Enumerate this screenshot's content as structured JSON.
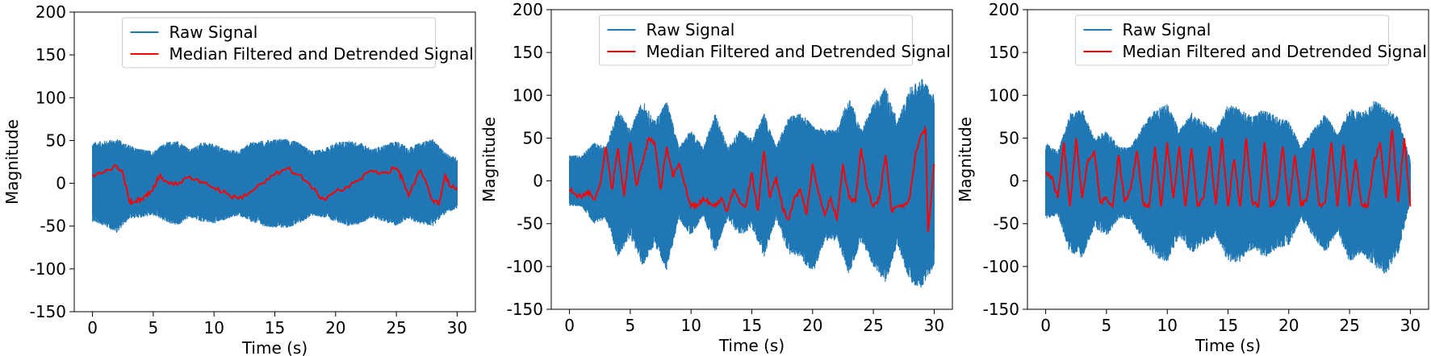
{
  "colors": {
    "raw": "#1f77b4",
    "filtered": "#ff0000",
    "axis": "#000000",
    "legend_border": "#cccccc"
  },
  "chart_data": [
    {
      "type": "line",
      "xlabel": "Time (s)",
      "ylabel": "Magnitude",
      "xlim": [
        -1.5,
        31.5
      ],
      "ylim": [
        -150,
        200
      ],
      "xticks": [
        0,
        5,
        10,
        15,
        20,
        25,
        30
      ],
      "yticks": [
        -150,
        -100,
        -50,
        0,
        50,
        100,
        150,
        200
      ],
      "legend": "upper center",
      "grid": false,
      "series": [
        {
          "name": "Raw Signal",
          "kind": "envelope",
          "x": [
            0,
            1,
            2,
            3,
            4,
            5,
            6,
            7,
            8,
            9,
            10,
            11,
            12,
            13,
            14,
            15,
            16,
            17,
            18,
            19,
            20,
            21,
            22,
            23,
            24,
            25,
            26,
            27,
            28,
            29,
            30
          ],
          "upper": [
            48,
            50,
            52,
            45,
            40,
            38,
            48,
            50,
            40,
            48,
            46,
            40,
            38,
            48,
            50,
            52,
            52,
            48,
            38,
            40,
            48,
            50,
            48,
            40,
            45,
            50,
            42,
            48,
            52,
            36,
            30
          ],
          "lower": [
            -45,
            -50,
            -58,
            -42,
            -40,
            -38,
            -45,
            -50,
            -40,
            -45,
            -48,
            -42,
            -38,
            -45,
            -50,
            -52,
            -52,
            -48,
            -38,
            -40,
            -45,
            -50,
            -48,
            -40,
            -45,
            -50,
            -42,
            -48,
            -50,
            -36,
            -30
          ]
        },
        {
          "name": "Median Filtered and Detrended Signal",
          "kind": "line",
          "x": [
            0,
            1,
            2,
            2.5,
            3,
            3.5,
            4,
            4.5,
            5,
            5.5,
            6,
            7,
            8,
            9,
            10,
            11,
            12,
            13,
            14,
            15,
            16,
            17,
            18,
            18.5,
            19,
            20,
            21,
            22,
            23,
            24,
            25,
            25.5,
            26,
            27,
            28,
            28.5,
            29,
            29.5,
            30
          ],
          "values": [
            10,
            13,
            20,
            12,
            -20,
            -22,
            -18,
            -15,
            -5,
            8,
            3,
            -2,
            8,
            2,
            -5,
            -12,
            -18,
            -10,
            0,
            10,
            17,
            10,
            -5,
            -12,
            -18,
            -10,
            -5,
            5,
            15,
            12,
            18,
            5,
            -15,
            15,
            -20,
            -25,
            10,
            -5,
            -5
          ]
        }
      ]
    },
    {
      "type": "line",
      "xlabel": "Time (s)",
      "ylabel": "Magnitude",
      "xlim": [
        -1.5,
        31.5
      ],
      "ylim": [
        -150,
        200
      ],
      "xticks": [
        0,
        5,
        10,
        15,
        20,
        25,
        30
      ],
      "yticks": [
        -150,
        -100,
        -50,
        0,
        50,
        100,
        150,
        200
      ],
      "legend": "upper center",
      "grid": false,
      "series": [
        {
          "name": "Raw Signal",
          "kind": "envelope",
          "x": [
            0,
            1,
            2,
            3,
            4,
            5,
            6,
            7,
            8,
            9,
            10,
            11,
            12,
            13,
            14,
            15,
            16,
            17,
            18,
            19,
            20,
            21,
            22,
            23,
            24,
            25,
            26,
            27,
            28,
            29,
            30
          ],
          "upper": [
            30,
            30,
            45,
            40,
            85,
            60,
            95,
            70,
            95,
            40,
            60,
            40,
            80,
            40,
            60,
            50,
            80,
            40,
            75,
            80,
            65,
            60,
            60,
            100,
            60,
            90,
            110,
            70,
            110,
            120,
            100
          ],
          "lower": [
            -30,
            -30,
            -50,
            -45,
            -90,
            -65,
            -100,
            -75,
            -105,
            -45,
            -65,
            -40,
            -85,
            -45,
            -65,
            -55,
            -90,
            -45,
            -85,
            -90,
            -110,
            -70,
            -70,
            -110,
            -70,
            -100,
            -120,
            -75,
            -120,
            -125,
            -100
          ]
        },
        {
          "name": "Median Filtered and Detrended Signal",
          "kind": "line",
          "x": [
            0,
            0.5,
            1,
            1.5,
            2,
            2.5,
            3,
            3.5,
            4,
            4.5,
            5,
            5.5,
            6,
            6.5,
            7,
            7.5,
            8,
            8.5,
            9,
            9.5,
            10,
            10.5,
            11,
            11.5,
            12,
            12.5,
            13,
            13.5,
            14,
            14.5,
            15,
            15.5,
            16,
            16.5,
            17,
            17.5,
            18,
            18.5,
            19,
            19.5,
            20,
            20.5,
            21,
            21.5,
            22,
            22.5,
            23,
            23.5,
            24,
            24.5,
            25,
            25.5,
            26,
            26.5,
            27,
            27.5,
            28,
            28.5,
            29,
            29.3,
            29.5,
            30
          ],
          "values": [
            -10,
            -15,
            -20,
            -12,
            -22,
            -5,
            40,
            -10,
            38,
            -18,
            45,
            -5,
            20,
            50,
            45,
            -10,
            40,
            5,
            20,
            -5,
            -30,
            -28,
            -20,
            -25,
            -30,
            -20,
            -35,
            -10,
            -25,
            -30,
            10,
            -35,
            35,
            -20,
            5,
            -30,
            -45,
            -20,
            -10,
            -40,
            20,
            -15,
            -40,
            -20,
            -45,
            20,
            -20,
            -25,
            38,
            -10,
            -30,
            -20,
            30,
            -35,
            -30,
            -30,
            -20,
            35,
            55,
            60,
            -60,
            20
          ]
        }
      ]
    },
    {
      "type": "line",
      "xlabel": "Time (s)",
      "ylabel": "Magnitude",
      "xlim": [
        -1.5,
        31.5
      ],
      "ylim": [
        -150,
        200
      ],
      "xticks": [
        0,
        5,
        10,
        15,
        20,
        25,
        30
      ],
      "yticks": [
        -150,
        -100,
        -50,
        0,
        50,
        100,
        150,
        200
      ],
      "legend": "upper center",
      "grid": false,
      "series": [
        {
          "name": "Raw Signal",
          "kind": "envelope",
          "x": [
            0,
            1,
            2,
            3,
            4,
            5,
            6,
            7,
            8,
            9,
            10,
            11,
            12,
            13,
            14,
            15,
            16,
            17,
            18,
            19,
            20,
            21,
            22,
            23,
            24,
            25,
            26,
            27,
            28,
            29,
            30
          ],
          "upper": [
            45,
            35,
            80,
            85,
            50,
            60,
            40,
            40,
            65,
            85,
            90,
            60,
            80,
            70,
            60,
            90,
            85,
            75,
            85,
            75,
            70,
            40,
            60,
            80,
            55,
            85,
            80,
            95,
            85,
            75,
            25
          ],
          "lower": [
            -45,
            -40,
            -85,
            -90,
            -55,
            -65,
            -45,
            -45,
            -70,
            -90,
            -95,
            -65,
            -85,
            -75,
            -65,
            -95,
            -95,
            -80,
            -90,
            -80,
            -75,
            -45,
            -65,
            -85,
            -60,
            -95,
            -85,
            -100,
            -110,
            -85,
            -25
          ]
        },
        {
          "name": "Median Filtered and Detrended Signal",
          "kind": "line",
          "x": [
            0,
            0.5,
            1,
            1.5,
            2,
            2.5,
            3,
            3.5,
            4,
            4.5,
            5,
            5.5,
            6,
            6.5,
            7,
            7.5,
            8,
            8.5,
            9,
            9.5,
            10,
            10.5,
            11,
            11.5,
            12,
            12.5,
            13,
            13.5,
            14,
            14.5,
            15,
            15.5,
            16,
            16.5,
            17,
            17.5,
            18,
            18.5,
            19,
            19.5,
            20,
            20.5,
            21,
            21.5,
            22,
            22.5,
            23,
            23.5,
            24,
            24.5,
            25,
            25.5,
            26,
            26.5,
            27,
            27.5,
            28,
            28.5,
            29,
            29.5,
            30
          ],
          "values": [
            8,
            5,
            -20,
            45,
            -30,
            50,
            -20,
            25,
            35,
            -25,
            -20,
            -30,
            30,
            -25,
            -10,
            35,
            -25,
            -30,
            40,
            -30,
            45,
            -20,
            40,
            -30,
            38,
            -30,
            -20,
            40,
            -28,
            50,
            -30,
            25,
            -30,
            50,
            -25,
            -30,
            45,
            -30,
            -20,
            40,
            -30,
            30,
            -30,
            -20,
            38,
            -28,
            -25,
            45,
            -30,
            42,
            -30,
            25,
            -28,
            -30,
            20,
            45,
            -20,
            60,
            -25,
            50,
            -30
          ]
        }
      ]
    }
  ]
}
